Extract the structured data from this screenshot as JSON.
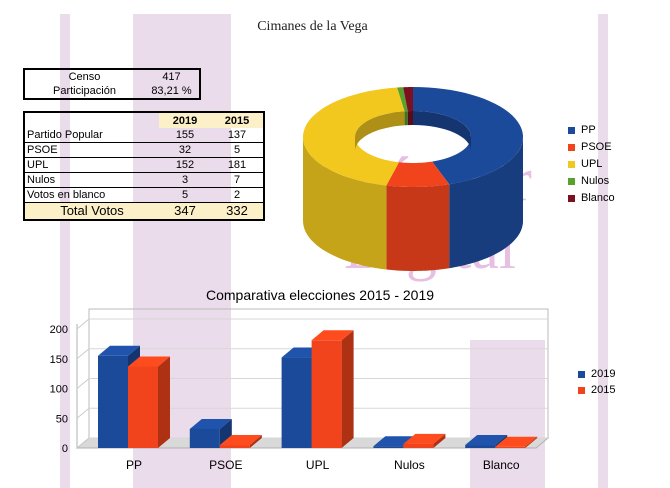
{
  "header": {
    "title": "Cimanes de la Vega"
  },
  "census": {
    "rows": [
      {
        "label": "Censo",
        "value": "417"
      },
      {
        "label": "Participación",
        "value": "83,21 %"
      }
    ]
  },
  "results_table": {
    "headers": [
      "2019",
      "2015"
    ],
    "rows": [
      {
        "label": "Partido Popular",
        "v2019": "155",
        "v2015": "137"
      },
      {
        "label": "PSOE",
        "v2019": "32",
        "v2015": "5"
      },
      {
        "label": "UPL",
        "v2019": "152",
        "v2015": "181"
      },
      {
        "label": "Nulos",
        "v2019": "3",
        "v2015": "7"
      },
      {
        "label": "Votos en blanco",
        "v2019": "5",
        "v2015": "2"
      }
    ],
    "total": {
      "label": "Total Votos",
      "v2019": "347",
      "v2015": "332"
    }
  },
  "watermark": {
    "line1": "LeónSur",
    "line2": "Digital"
  },
  "colors": {
    "pp": "#1c4a9a",
    "psoe": "#f2441c",
    "upl": "#f2c81e",
    "nulos": "#5aa02c",
    "blanco": "#7a1020",
    "s2019": "#1c4a9a",
    "s2015": "#f2441c"
  },
  "chart_data": [
    {
      "type": "pie",
      "title": "",
      "categories": [
        "PP",
        "PSOE",
        "UPL",
        "Nulos",
        "Blanco"
      ],
      "values": [
        155,
        32,
        152,
        3,
        5
      ],
      "legend": "right"
    },
    {
      "type": "bar",
      "title": "Comparativa elecciones 2015 - 2019",
      "categories": [
        "PP",
        "PSOE",
        "UPL",
        "Nulos",
        "Blanco"
      ],
      "series": [
        {
          "name": "2019",
          "values": [
            155,
            32,
            152,
            3,
            5
          ]
        },
        {
          "name": "2015",
          "values": [
            137,
            5,
            181,
            7,
            2
          ]
        }
      ],
      "yticks": [
        "0",
        "50",
        "100",
        "150",
        "200"
      ],
      "ylim": [
        0,
        200
      ],
      "legend": "right"
    }
  ]
}
